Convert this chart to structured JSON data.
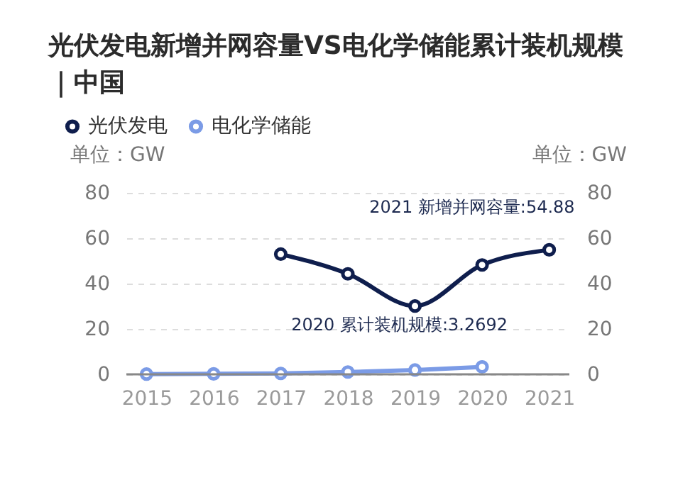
{
  "chart_data": {
    "type": "line",
    "title": "光伏发电新增并网容量VS电化学储能累计装机规模｜中国",
    "categories": [
      "2015",
      "2016",
      "2017",
      "2018",
      "2019",
      "2020",
      "2021"
    ],
    "series": [
      {
        "name": "光伏发电",
        "color": "#0f1e4d",
        "values": [
          null,
          null,
          53.0,
          44.3,
          30.1,
          48.2,
          54.88
        ]
      },
      {
        "name": "电化学储能",
        "color": "#7b9be6",
        "values": [
          0.1,
          0.2,
          0.4,
          1.0,
          1.9,
          3.2692,
          null
        ]
      }
    ],
    "ylabel": "单位：GW",
    "y2label": "单位：GW",
    "ylim": [
      0,
      80
    ],
    "yticks": [
      0,
      20,
      40,
      60,
      80
    ],
    "y2lim": [
      0,
      80
    ],
    "y2ticks": [
      0,
      20,
      40,
      60,
      80
    ],
    "annotations": [
      {
        "text": "2021 新增并网容量:54.88",
        "x": "2021",
        "y": 54.88
      },
      {
        "text": "2020 累计装机规模:3.2692",
        "x": "2020",
        "y": 3.2692
      }
    ],
    "grid": "y",
    "legend": "top left",
    "marker": "circle",
    "line_style": "solid"
  }
}
